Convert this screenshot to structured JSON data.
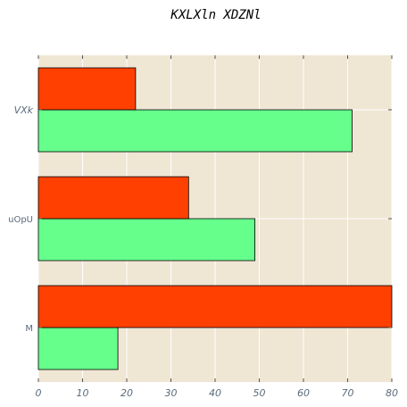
{
  "chart_data": {
    "type": "bar",
    "orientation": "horizontal",
    "title": "KXLXln XDZNl",
    "xlabel": "",
    "ylabel": "",
    "categories": [
      "M",
      "uOpU",
      "VXk"
    ],
    "category_label_styles": [
      "normal",
      "normal",
      "italic"
    ],
    "series": [
      {
        "values": [
          18,
          49,
          71
        ],
        "color": "#66ff8c"
      },
      {
        "values": [
          80,
          34,
          22
        ],
        "color": "#ff4000"
      }
    ],
    "xlim": [
      0,
      80
    ],
    "xticks": [
      0,
      10,
      20,
      30,
      40,
      50,
      60,
      70,
      80
    ],
    "grid": true,
    "legend": "none",
    "colors": {
      "plot_background": "#efe6d4",
      "grid": "#ffffff",
      "bar_edge": "#000000",
      "tick_label": "#5a6a7a"
    }
  }
}
